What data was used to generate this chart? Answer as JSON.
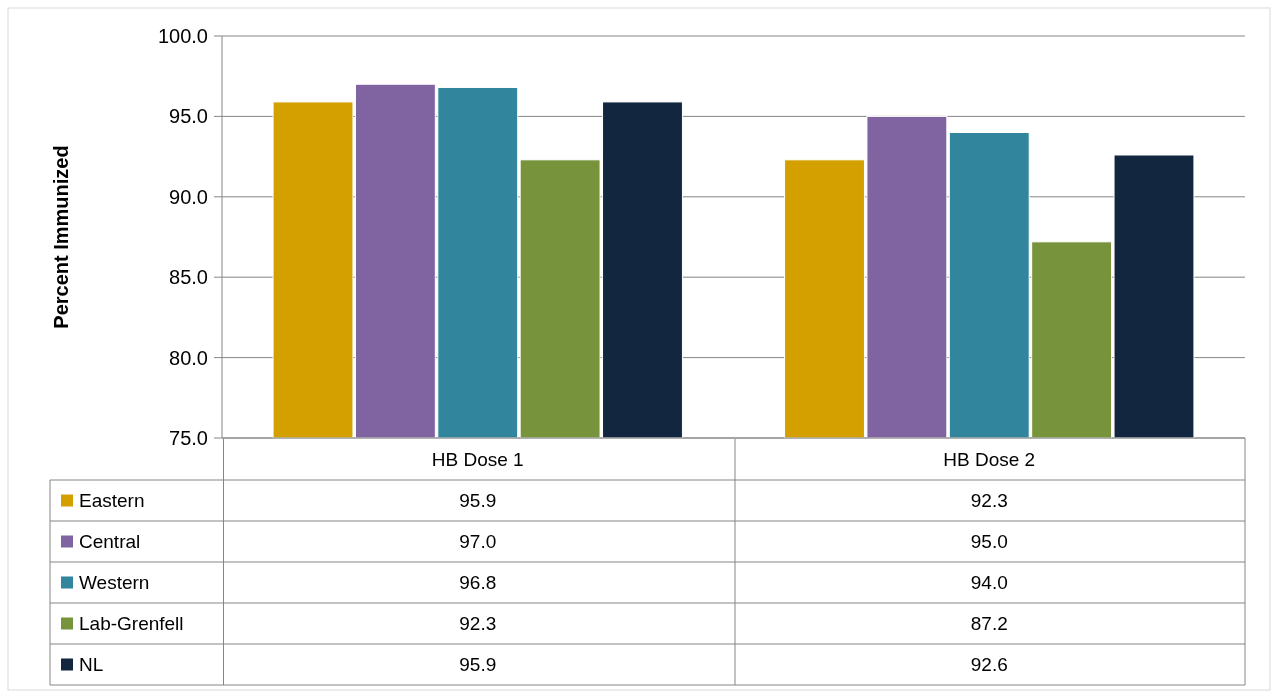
{
  "chart_data": {
    "type": "bar",
    "ylabel": "Percent Immunized",
    "categories": [
      "HB Dose 1",
      "HB Dose 2"
    ],
    "series": [
      {
        "name": "Eastern",
        "color": "#d4a000",
        "values": [
          95.9,
          92.3
        ],
        "value_labels": [
          "95.9",
          "92.3"
        ]
      },
      {
        "name": "Central",
        "color": "#8064a2",
        "values": [
          97.0,
          95.0
        ],
        "value_labels": [
          "97.0",
          "95.0"
        ]
      },
      {
        "name": "Western",
        "color": "#31859c",
        "values": [
          96.8,
          94.0
        ],
        "value_labels": [
          "96.8",
          "94.0"
        ]
      },
      {
        "name": "Lab-Grenfell",
        "color": "#77933c",
        "values": [
          92.3,
          87.2
        ],
        "value_labels": [
          "92.3",
          "87.2"
        ]
      },
      {
        "name": "NL",
        "color": "#12263f",
        "values": [
          95.9,
          92.6
        ],
        "value_labels": [
          "95.9",
          "92.6"
        ]
      }
    ],
    "ylim": [
      75,
      100
    ],
    "yticks": [
      {
        "value": 75,
        "label": "75.0"
      },
      {
        "value": 80,
        "label": "80.0"
      },
      {
        "value": 85,
        "label": "85.0"
      },
      {
        "value": 90,
        "label": "90.0"
      },
      {
        "value": 95,
        "label": "95.0"
      },
      {
        "value": 100,
        "label": "100.0"
      }
    ],
    "grid": "y",
    "legend": "bottom"
  }
}
